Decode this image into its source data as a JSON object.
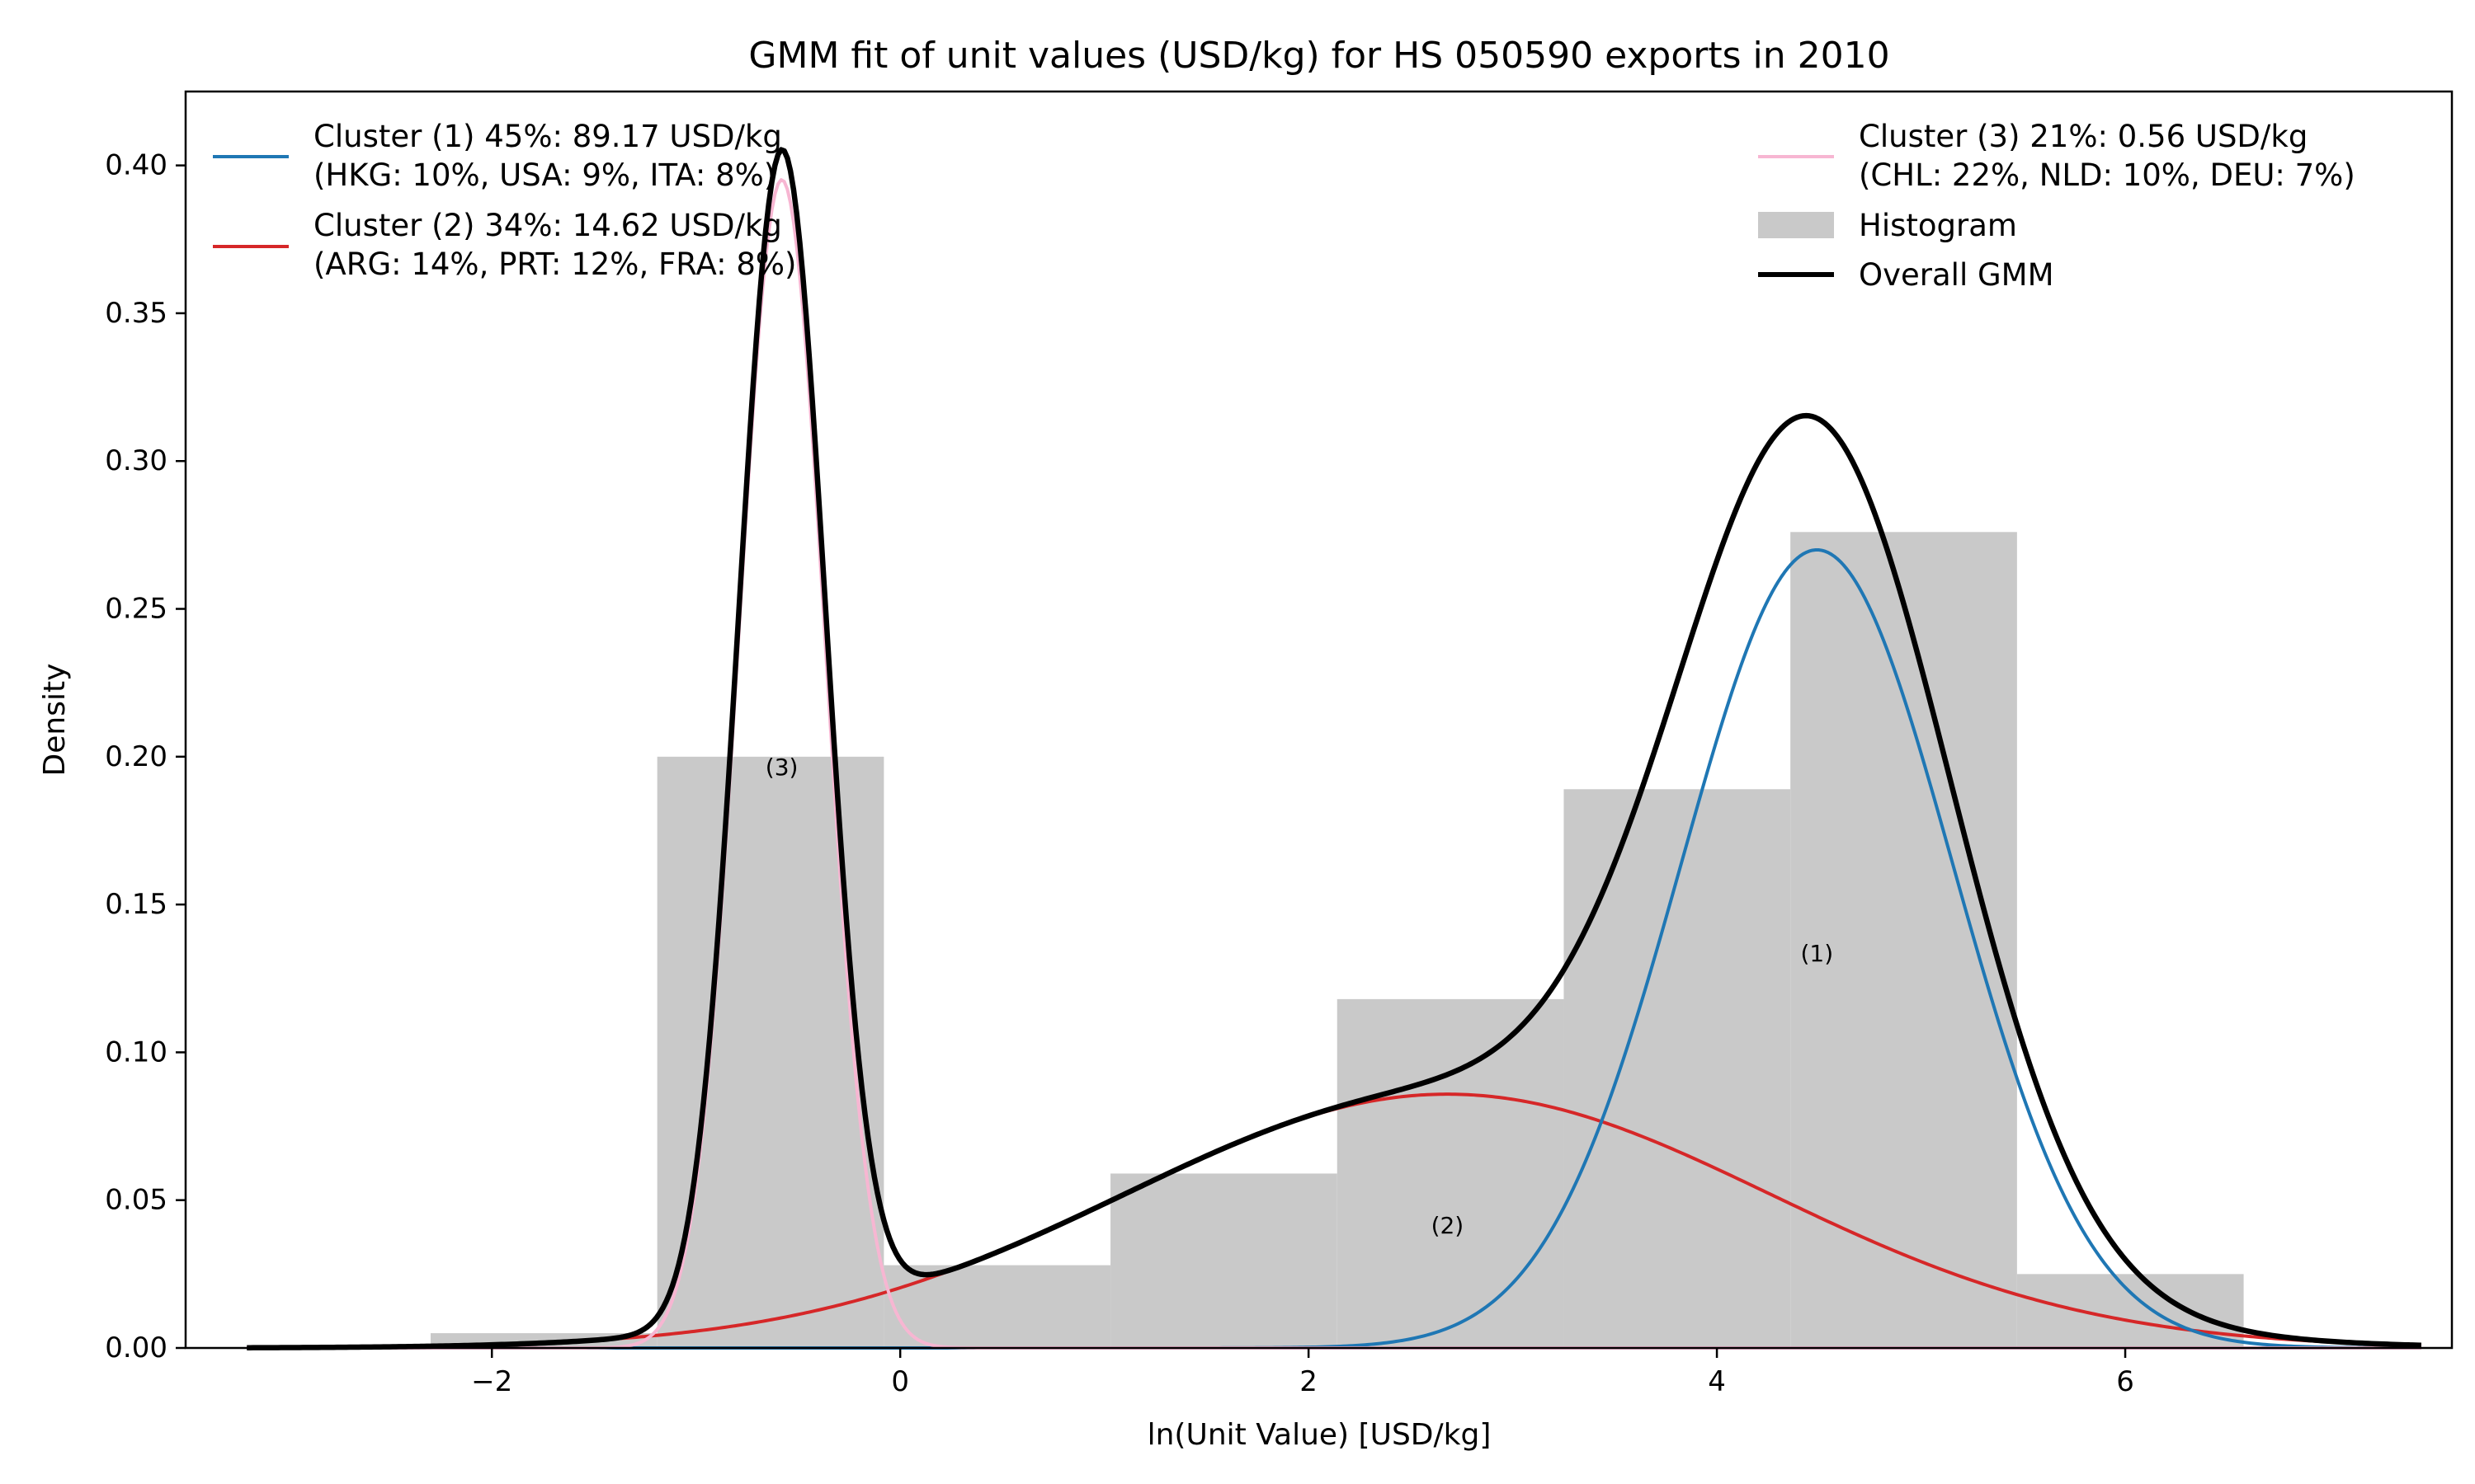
{
  "chart_data": {
    "type": "histogram",
    "title": "GMM fit of unit values (USD/kg) for HS 050590 exports in 2010",
    "xlabel": "ln(Unit Value) [USD/kg]",
    "ylabel": "Density",
    "xlim": [
      -3.5,
      7.6
    ],
    "ylim": [
      0,
      0.425
    ],
    "xticks": [
      -2,
      0,
      2,
      4,
      6
    ],
    "xtick_labels": [
      "−2",
      "0",
      "2",
      "4",
      "6"
    ],
    "yticks": [
      0,
      0.05,
      0.1,
      0.15,
      0.2,
      0.25,
      0.3,
      0.35,
      0.4
    ],
    "ytick_labels": [
      "0.00",
      "0.05",
      "0.10",
      "0.15",
      "0.20",
      "0.25",
      "0.30",
      "0.35",
      "0.40"
    ],
    "grid": false,
    "histogram": {
      "name": "Histogram",
      "color": "#c9c9c9",
      "bins": [
        {
          "x0": -2.3,
          "x1": -1.19,
          "density": 0.005
        },
        {
          "x0": -1.19,
          "x1": -0.08,
          "density": 0.2
        },
        {
          "x0": -0.08,
          "x1": 1.03,
          "density": 0.028
        },
        {
          "x0": 1.03,
          "x1": 2.14,
          "density": 0.059
        },
        {
          "x0": 2.14,
          "x1": 3.25,
          "density": 0.118
        },
        {
          "x0": 3.25,
          "x1": 4.36,
          "density": 0.189
        },
        {
          "x0": 4.36,
          "x1": 5.47,
          "density": 0.276
        },
        {
          "x0": 5.47,
          "x1": 6.58,
          "density": 0.025
        }
      ]
    },
    "x_range": [
      -3.2,
      7.45
    ],
    "components": [
      {
        "id": "c1",
        "name": "Cluster (1) 45%: 89.17 USD/kg",
        "detail": "(HKG: 10%, USA: 9%, ITA: 8%)",
        "color": "#1f77b4",
        "weight": 0.45,
        "mean": 4.49,
        "sd": 0.665,
        "annotation": "(1)",
        "annotation_x": 4.49,
        "annotation_y": 0.133
      },
      {
        "id": "c2",
        "name": "Cluster (2) 34%: 14.62 USD/kg",
        "detail": "(ARG: 14%, PRT: 12%, FRA: 8%)",
        "color": "#d62728",
        "weight": 0.34,
        "mean": 2.68,
        "sd": 1.58,
        "annotation": "(2)",
        "annotation_x": 2.68,
        "annotation_y": 0.041
      },
      {
        "id": "c3",
        "name": "Cluster (3) 21%: 0.56 USD/kg",
        "detail": "(CHL: 22%, NLD: 10%, DEU: 7%)",
        "color": "#f7b6d2",
        "weight": 0.21,
        "mean": -0.58,
        "sd": 0.212,
        "annotation": "(3)",
        "annotation_x": -0.58,
        "annotation_y": 0.196
      }
    ],
    "overall": {
      "name": "Overall GMM",
      "color": "#000000"
    },
    "legend": {
      "left_title_1": "Cluster (1) 45%: 89.17 USD/kg",
      "left_detail_1": "(HKG: 10%, USA: 9%, ITA: 8%)",
      "left_title_2": "Cluster (2) 34%: 14.62 USD/kg",
      "left_detail_2": "(ARG: 14%, PRT: 12%, FRA: 8%)",
      "right_title_3": "Cluster (3) 21%: 0.56 USD/kg",
      "right_detail_3": "(CHL: 22%, NLD: 10%, DEU: 7%)",
      "right_hist": "Histogram",
      "right_overall": "Overall GMM",
      "placement": "top (split left and right)"
    }
  }
}
